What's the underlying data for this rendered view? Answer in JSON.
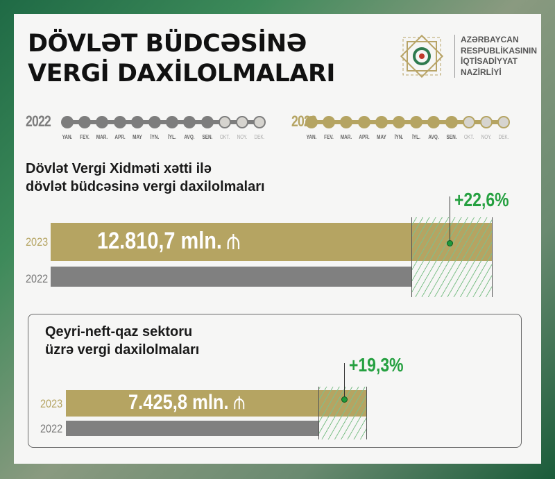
{
  "title": {
    "line1": "DÖVLƏT BÜDCƏSİNƏ",
    "line2": "VERGİ DAXİLOLMALARI"
  },
  "logo": {
    "lines": [
      "AZƏRBAYCAN",
      "RESPUBLİKASININ",
      "İQTİSADİYYAT",
      "NAZİRLİYİ"
    ]
  },
  "timeline": {
    "months": [
      "YAN.",
      "FEV.",
      "MAR.",
      "APR.",
      "MAY",
      "İYN.",
      "İYL.",
      "AVQ.",
      "SEN.",
      "OKT.",
      "NOY.",
      "DEK."
    ],
    "months_covered": 9,
    "years": [
      {
        "label": "2022",
        "color": "#7d7d7d"
      },
      {
        "label": "2023",
        "color": "#b5a462"
      }
    ]
  },
  "colors": {
    "y2023": "#b5a462",
    "y2022": "#808080",
    "growth": "#25a040"
  },
  "chart_data": [
    {
      "type": "bar",
      "orientation": "horizontal",
      "title": "Dövlət Vergi Xidməti xətti ilə dövlət büdcəsinə vergi daxilolmaları",
      "title_lines": [
        "Dövlət Vergi Xidməti xətti ilə",
        "dövlət büdcəsinə vergi daxilolmaları"
      ],
      "categories": [
        "2023",
        "2022"
      ],
      "values": [
        12810.7,
        10449.2
      ],
      "unit": "mln. ₼",
      "value_label": "12.810,7 mln.",
      "growth_label": "+22,6%"
    },
    {
      "type": "bar",
      "orientation": "horizontal",
      "title": "Qeyri-neft-qaz sektoru üzrə vergi daxilolmaları",
      "title_lines": [
        "Qeyri-neft-qaz sektoru",
        "üzrə vergi daxilolmaları"
      ],
      "categories": [
        "2023",
        "2022"
      ],
      "values": [
        7425.8,
        6224.5
      ],
      "unit": "mln. ₼",
      "value_label": "7.425,8 mln.",
      "growth_label": "+19,3%"
    }
  ]
}
